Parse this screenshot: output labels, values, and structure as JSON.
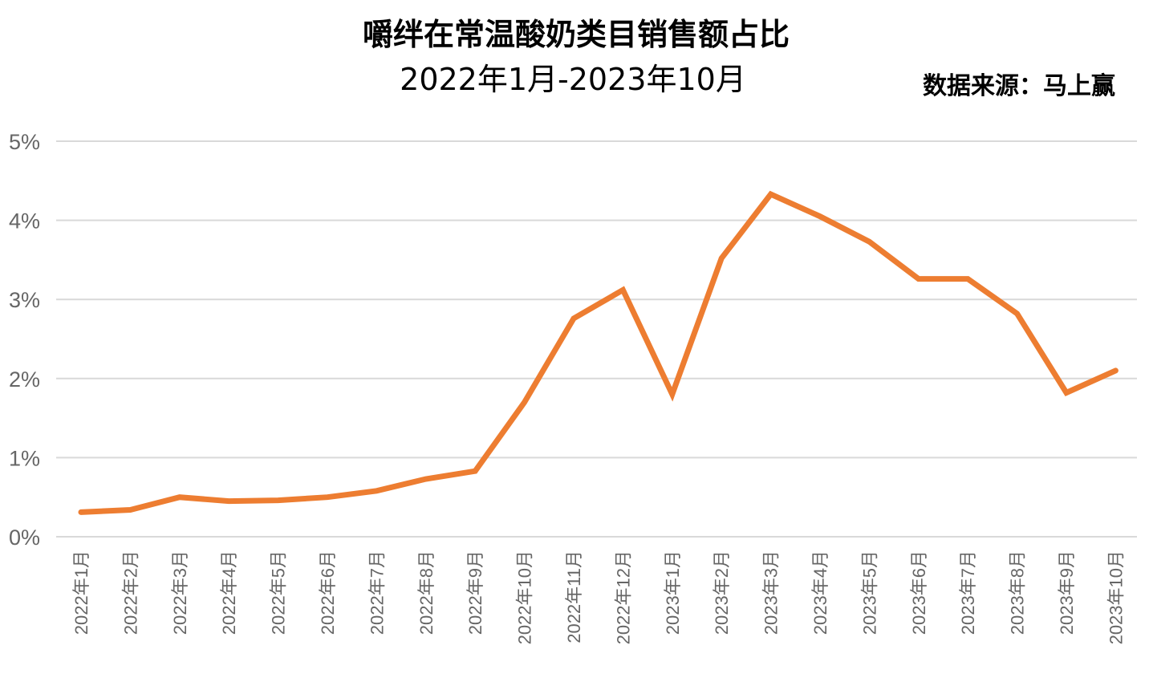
{
  "chart_data": {
    "type": "line",
    "title": "嚼绊在常温酸奶类目销售额占比",
    "subtitle": "2022年1月-2023年10月",
    "source_note": "数据来源：马上赢",
    "xlabel": "",
    "ylabel": "",
    "categories": [
      "2022年1月",
      "2022年2月",
      "2022年3月",
      "2022年4月",
      "2022年5月",
      "2022年6月",
      "2022年7月",
      "2022年8月",
      "2022年9月",
      "2022年10月",
      "2022年11月",
      "2022年12月",
      "2023年1月",
      "2023年2月",
      "2023年3月",
      "2023年4月",
      "2023年5月",
      "2023年6月",
      "2023年7月",
      "2023年8月",
      "2023年9月",
      "2023年10月"
    ],
    "series": [
      {
        "values": [
          0.31,
          0.34,
          0.5,
          0.45,
          0.46,
          0.5,
          0.58,
          0.73,
          0.83,
          1.7,
          2.76,
          3.12,
          1.8,
          3.52,
          4.33,
          4.05,
          3.73,
          3.26,
          3.26,
          2.82,
          1.82,
          2.1
        ],
        "color": "#ED7D31"
      }
    ],
    "y_ticks": [
      "0%",
      "1%",
      "2%",
      "3%",
      "4%",
      "5%"
    ],
    "ylim": [
      0,
      5
    ],
    "grid": true,
    "legend": "none"
  }
}
